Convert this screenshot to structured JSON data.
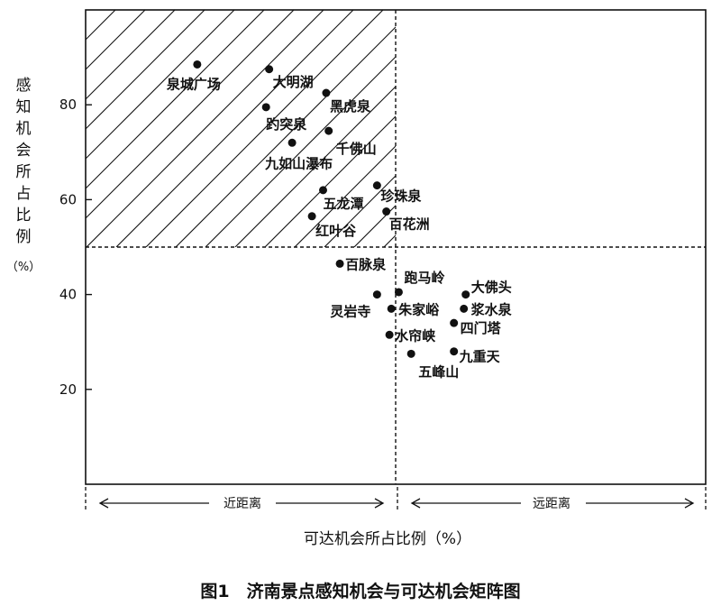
{
  "chart_data": {
    "type": "scatter",
    "caption": "图1　济南景点感知机会与可达机会矩阵图",
    "xlabel": "可达机会所占比例（%）",
    "ylabel": "感知机会所占比例（%）",
    "ylabel_top": "感知机会所占比例",
    "ylabel_unit": "（%）",
    "y_ticks": [
      "20",
      "40",
      "60",
      "80"
    ],
    "y_tick_values": [
      20,
      40,
      60,
      80
    ],
    "ylim": [
      0,
      100
    ],
    "x_divider": 50,
    "y_divider": 50,
    "near_label": "近距离",
    "far_label": "远距离",
    "hatched_quadrant": "top-left",
    "points": [
      {
        "name": "泉城广场",
        "x": 18.0,
        "y": 88.5
      },
      {
        "name": "大明湖",
        "x": 29.6,
        "y": 87.5
      },
      {
        "name": "黑虎泉",
        "x": 38.8,
        "y": 82.5
      },
      {
        "name": "趵突泉",
        "x": 29.1,
        "y": 79.5
      },
      {
        "name": "千佛山",
        "x": 39.2,
        "y": 74.5
      },
      {
        "name": "九如山瀑布",
        "x": 33.3,
        "y": 72.0
      },
      {
        "name": "珍珠泉",
        "x": 47.0,
        "y": 63.0
      },
      {
        "name": "五龙潭",
        "x": 38.3,
        "y": 62.0
      },
      {
        "name": "百花洲",
        "x": 48.5,
        "y": 57.5
      },
      {
        "name": "红叶谷",
        "x": 36.5,
        "y": 56.5
      },
      {
        "name": "百脉泉",
        "x": 41.0,
        "y": 46.5
      },
      {
        "name": "跑马岭",
        "x": 50.5,
        "y": 40.5
      },
      {
        "name": "灵岩寺",
        "x": 47.0,
        "y": 40.0
      },
      {
        "name": "大佛头",
        "x": 61.3,
        "y": 40.0
      },
      {
        "name": "朱家峪",
        "x": 49.3,
        "y": 37.0
      },
      {
        "name": "浆水泉",
        "x": 61.0,
        "y": 37.0
      },
      {
        "name": "四门塔",
        "x": 59.4,
        "y": 34.0
      },
      {
        "name": "水帘峡",
        "x": 49.0,
        "y": 31.5
      },
      {
        "name": "九重天",
        "x": 59.4,
        "y": 28.0
      },
      {
        "name": "五峰山",
        "x": 52.5,
        "y": 27.5
      }
    ]
  }
}
